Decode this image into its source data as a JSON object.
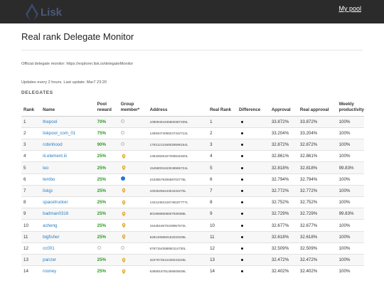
{
  "header": {
    "logo_text": "Lisk",
    "my_pool_link": "My pool",
    "accent_color": "#4b5a78"
  },
  "page": {
    "title": "Real rank Delegate Monitor",
    "official_info": "Official delegate monitor: https://explorer.lisk.io/delegateMonitor",
    "update_info": "Updates every 2 hours. Last update: Mar7 23:20",
    "section_label": "DELEGATES"
  },
  "table": {
    "columns": {
      "rank": "Rank",
      "name": "Name",
      "pool_reward_1": "Pool",
      "pool_reward_2": "reward",
      "group_member_1": "Group",
      "group_member_2": "member*",
      "address": "Address",
      "real_rank": "Real Rank",
      "difference": "Difference",
      "approval": "Approval",
      "real_approval": "Real approval",
      "weekly_1": "Weekly",
      "weekly_2": "productivity"
    },
    "rows": [
      {
        "rank": "1",
        "name": "thepool",
        "reward": "70%",
        "group": "ring",
        "address": "10809494436800387209L",
        "real_rank": "1",
        "approval": "33.872%",
        "real_approval": "33.872%",
        "productivity": "100%"
      },
      {
        "rank": "2",
        "name": "liskpool_com_01",
        "reward": "75%",
        "group": "ring",
        "address": "14593474056247442712L",
        "real_rank": "2",
        "approval": "33.204%",
        "real_approval": "33.204%",
        "productivity": "100%"
      },
      {
        "rank": "3",
        "name": "robinhood",
        "reward": "90%",
        "group": "ring",
        "address": "17621212458028596154L",
        "real_rank": "3",
        "approval": "32.872%",
        "real_approval": "32.872%",
        "productivity": "100%"
      },
      {
        "rank": "4",
        "name": "iii.element.iii",
        "reward": "25%",
        "group": "pin",
        "address": "13942826167405531820L",
        "real_rank": "4",
        "approval": "32.861%",
        "real_approval": "32.861%",
        "productivity": "100%"
      },
      {
        "rank": "5",
        "name": "leo",
        "reward": "25%",
        "group": "pin",
        "address": "15458001843048965724L",
        "real_rank": "5",
        "approval": "32.818%",
        "real_approval": "32.818%",
        "productivity": "99.83%"
      },
      {
        "rank": "6",
        "name": "tembo",
        "reward": "25%",
        "group": "blue",
        "address": "2433657930558702776L",
        "real_rank": "6",
        "approval": "32.794%",
        "real_approval": "32.794%",
        "productivity": "100%"
      },
      {
        "rank": "7",
        "name": "liskjp",
        "reward": "25%",
        "group": "pin",
        "address": "4402625644304434270L",
        "real_rank": "7",
        "approval": "32.772%",
        "real_approval": "32.772%",
        "productivity": "100%"
      },
      {
        "rank": "8",
        "name": "spacetrucker",
        "reward": "25%",
        "group": "pin",
        "address": "14212484126746187777L",
        "real_rank": "8",
        "approval": "32.752%",
        "real_approval": "32.752%",
        "productivity": "100%"
      },
      {
        "rank": "9",
        "name": "badman0316",
        "reward": "25%",
        "group": "pin",
        "address": "8019598606607939388L",
        "real_rank": "9",
        "approval": "32.729%",
        "real_approval": "32.729%",
        "productivity": "99.83%"
      },
      {
        "rank": "10",
        "name": "acheng",
        "reward": "25%",
        "group": "pin",
        "address": "1543515670249957672L",
        "real_rank": "10",
        "approval": "32.677%",
        "real_approval": "32.677%",
        "productivity": "100%"
      },
      {
        "rank": "11",
        "name": "bigfisher",
        "reward": "25%",
        "group": "pin",
        "address": "6281405850162033335L",
        "real_rank": "11",
        "approval": "32.618%",
        "real_approval": "32.618%",
        "productivity": "100%"
      },
      {
        "rank": "12",
        "name": "cc001",
        "reward": "",
        "group": "ring",
        "address": "6787154358850114730L",
        "real_rank": "12",
        "approval": "32.509%",
        "real_approval": "32.509%",
        "productivity": "100%"
      },
      {
        "rank": "13",
        "name": "panzer",
        "reward": "25%",
        "group": "pin",
        "address": "3227672512436243226L",
        "real_rank": "13",
        "approval": "32.472%",
        "real_approval": "32.472%",
        "productivity": "100%"
      },
      {
        "rank": "14",
        "name": "rooney",
        "reward": "25%",
        "group": "pin",
        "address": "6356915781456505636L",
        "real_rank": "14",
        "approval": "32.402%",
        "real_approval": "32.402%",
        "productivity": "100%"
      }
    ]
  }
}
